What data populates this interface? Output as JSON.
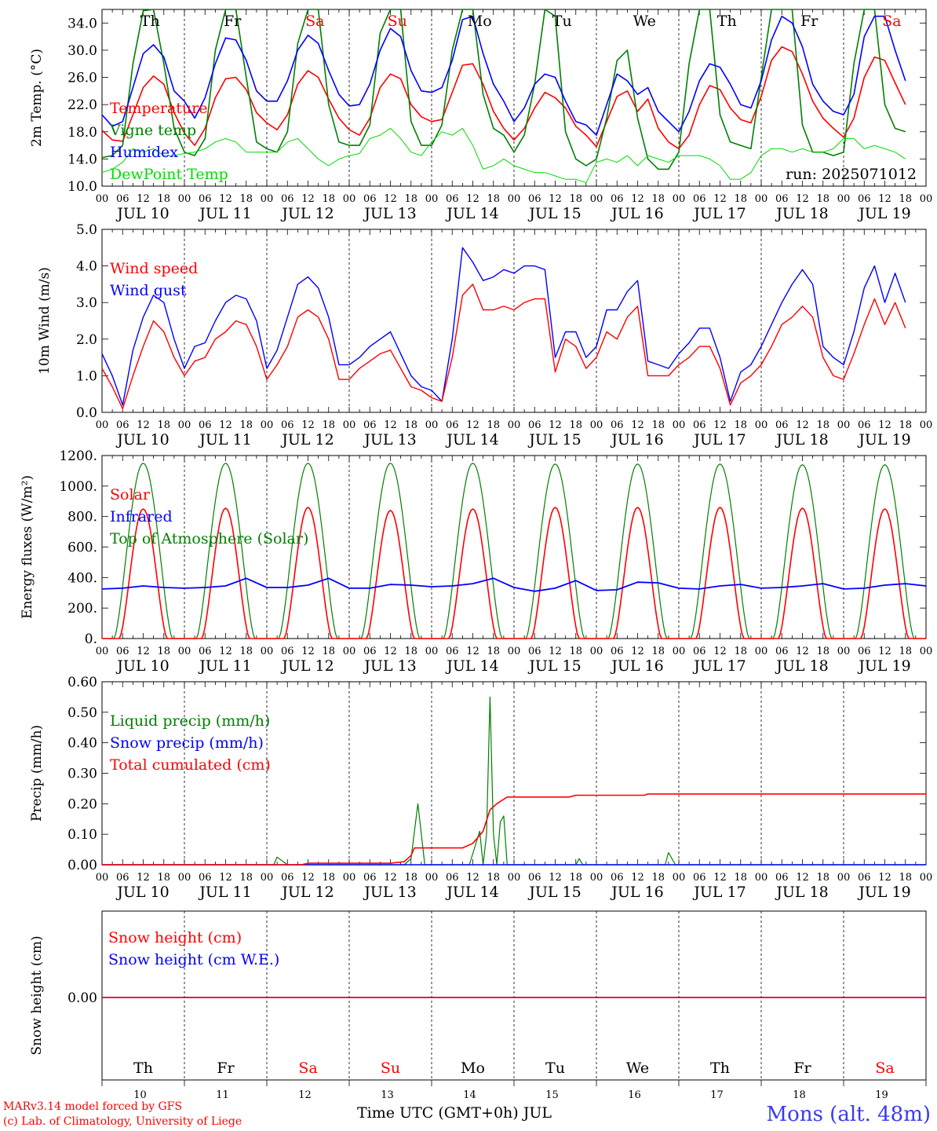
{
  "run_label": "run: 2025071012",
  "credits": [
    "MARv3.14 model forced by GFS",
    "(c) Lab. of Climatology, University of Liege"
  ],
  "station": "Mons (alt. 48m)",
  "x_axis_title": "Time UTC (GMT+0h) JUL",
  "hour_ticks": [
    "00",
    "06",
    "12",
    "18"
  ],
  "final_tick": "00",
  "days": [
    {
      "label": "JUL 10",
      "day": "10",
      "weekday": "Th",
      "weekend": false
    },
    {
      "label": "JUL 11",
      "day": "11",
      "weekday": "Fr",
      "weekend": false
    },
    {
      "label": "JUL 12",
      "day": "12",
      "weekday": "Sa",
      "weekend": true
    },
    {
      "label": "JUL 13",
      "day": "13",
      "weekday": "Su",
      "weekend": true
    },
    {
      "label": "JUL 14",
      "day": "14",
      "weekday": "Mo",
      "weekend": false
    },
    {
      "label": "JUL 15",
      "day": "15",
      "weekday": "Tu",
      "weekend": false
    },
    {
      "label": "JUL 16",
      "day": "16",
      "weekday": "We",
      "weekend": false
    },
    {
      "label": "JUL 17",
      "day": "17",
      "weekday": "Th",
      "weekend": false
    },
    {
      "label": "JUL 18",
      "day": "18",
      "weekday": "Fr",
      "weekend": false
    },
    {
      "label": "JUL 19",
      "day": "19",
      "weekday": "Sa",
      "weekend": true
    }
  ],
  "colors": {
    "red": "#ff0000",
    "green": "#008000",
    "blue": "#0000ff",
    "lightgreen": "#00dd00",
    "weekend": "#ff0000",
    "weekday": "#000000"
  },
  "chart_data": [
    {
      "type": "line",
      "ylabel": "2m Temp. (°C)",
      "ylim": [
        10,
        36
      ],
      "yticks": [
        "10.0",
        "14.0",
        "18.0",
        "22.0",
        "26.0",
        "30.0",
        "34.0"
      ],
      "ytick_values": [
        10,
        14,
        18,
        22,
        26,
        30,
        34
      ],
      "x_hours_from_jul10_00": [
        0,
        3,
        6,
        9,
        12,
        15,
        18,
        21,
        24,
        27,
        30,
        33,
        36,
        39,
        42,
        45,
        48,
        51,
        54,
        57,
        60,
        63,
        66,
        69,
        72,
        75,
        78,
        81,
        84,
        87,
        90,
        93,
        96,
        99,
        102,
        105,
        108,
        111,
        114,
        117,
        120,
        123,
        126,
        129,
        132,
        135,
        138,
        141,
        144,
        147,
        150,
        153,
        156,
        159,
        162,
        165,
        168,
        171,
        174,
        177,
        180,
        183,
        186,
        189,
        192,
        195,
        198,
        201,
        204,
        207,
        210,
        213,
        216,
        219,
        222,
        225,
        228,
        231,
        234,
        237,
        240
      ],
      "series": [
        {
          "name": "Temperature",
          "color": "red",
          "values": [
            18.2,
            16.8,
            16.6,
            20.5,
            24.5,
            26.2,
            25.0,
            20.8,
            17.8,
            16.0,
            18.5,
            23.0,
            25.8,
            26.0,
            24.2,
            20.8,
            19.3,
            18.3,
            20.5,
            25.0,
            27.0,
            26.0,
            22.8,
            20.0,
            18.3,
            17.5,
            20.0,
            24.5,
            26.5,
            25.8,
            22.0,
            20.2,
            19.5,
            19.8,
            23.8,
            27.8,
            28.0,
            25.0,
            21.0,
            18.5,
            16.8,
            18.5,
            21.5,
            23.8,
            23.0,
            21.5,
            18.8,
            17.5,
            15.8,
            19.5,
            23.2,
            24.0,
            21.0,
            22.8,
            18.5,
            16.5,
            15.5,
            17.5,
            22.0,
            24.8,
            24.2,
            21.5,
            19.8,
            19.3,
            23.2,
            28.5,
            30.5,
            29.8,
            26.5,
            22.5,
            20.0,
            18.5,
            17.2,
            20.0,
            26.0,
            29.0,
            28.5,
            25.2,
            22.0
          ]
        },
        {
          "name": "Vigne temp",
          "color": "green",
          "values": [
            14.2,
            14.5,
            16.0,
            28.0,
            35.8,
            36.0,
            28.0,
            18.5,
            15.0,
            14.5,
            17.0,
            30.0,
            36.0,
            36.0,
            26.0,
            16.5,
            15.5,
            15.0,
            18.0,
            31.0,
            36.0,
            36.0,
            22.0,
            16.5,
            16.0,
            16.0,
            19.0,
            32.5,
            36.0,
            36.0,
            19.5,
            16.0,
            16.0,
            19.0,
            30.0,
            36.0,
            36.0,
            23.5,
            18.5,
            17.5,
            15.0,
            17.5,
            25.0,
            36.0,
            35.0,
            18.0,
            14.0,
            13.0,
            14.0,
            20.0,
            28.5,
            30.0,
            20.0,
            14.0,
            12.5,
            12.5,
            15.0,
            28.0,
            36.0,
            36.0,
            20.5,
            16.5,
            16.0,
            15.5,
            26.0,
            36.0,
            36.0,
            36.0,
            19.0,
            15.0,
            15.0,
            14.5,
            15.0,
            28.0,
            36.0,
            36.0,
            22.0,
            18.5,
            18.0
          ]
        },
        {
          "name": "Humidex",
          "color": "blue",
          "values": [
            20.5,
            18.8,
            19.5,
            24.5,
            29.5,
            30.8,
            29.0,
            24.0,
            22.5,
            20.0,
            23.0,
            28.0,
            31.8,
            31.5,
            28.5,
            24.0,
            22.5,
            22.5,
            25.5,
            30.0,
            32.2,
            31.0,
            27.0,
            23.5,
            21.8,
            22.0,
            25.0,
            30.0,
            33.2,
            32.0,
            27.0,
            24.0,
            23.8,
            24.5,
            28.5,
            34.5,
            35.0,
            29.5,
            25.0,
            22.5,
            19.5,
            21.5,
            25.0,
            26.5,
            26.0,
            22.5,
            19.5,
            19.0,
            17.5,
            22.0,
            26.5,
            25.5,
            23.5,
            24.5,
            21.0,
            19.5,
            18.0,
            21.0,
            25.5,
            28.0,
            27.5,
            25.0,
            22.0,
            21.5,
            25.5,
            31.5,
            35.0,
            34.0,
            30.5,
            25.0,
            22.5,
            21.0,
            20.5,
            23.5,
            32.0,
            35.0,
            35.0,
            30.0,
            25.5
          ]
        },
        {
          "name": "DewPoint Temp",
          "color": "lightgreen",
          "values": [
            12.0,
            12.5,
            13.5,
            15.5,
            15.0,
            15.5,
            14.5,
            14.5,
            14.8,
            15.0,
            15.5,
            16.5,
            17.0,
            16.5,
            15.0,
            15.0,
            15.0,
            15.0,
            16.5,
            17.0,
            15.5,
            14.0,
            13.0,
            14.0,
            14.5,
            14.8,
            17.0,
            17.5,
            18.5,
            17.0,
            15.0,
            14.5,
            16.5,
            18.0,
            17.5,
            18.5,
            16.0,
            12.5,
            13.0,
            14.0,
            13.0,
            12.5,
            12.0,
            12.0,
            11.5,
            11.0,
            11.0,
            10.5,
            13.5,
            14.0,
            13.5,
            14.5,
            13.0,
            14.5,
            14.0,
            13.5,
            14.5,
            14.5,
            14.5,
            14.0,
            13.0,
            11.0,
            11.0,
            12.0,
            14.5,
            15.5,
            15.5,
            15.0,
            15.5,
            15.0,
            15.0,
            15.5,
            17.0,
            17.0,
            15.5,
            16.0,
            15.5,
            15.0,
            14.0
          ]
        }
      ]
    },
    {
      "type": "line",
      "ylabel": "10m Wind (m/s)",
      "ylim": [
        0,
        5
      ],
      "yticks": [
        "0.0",
        "1.0",
        "2.0",
        "3.0",
        "4.0",
        "5.0"
      ],
      "ytick_values": [
        0,
        1,
        2,
        3,
        4,
        5
      ],
      "x_hours_from_jul10_00": [
        0,
        3,
        6,
        9,
        12,
        15,
        18,
        21,
        24,
        27,
        30,
        33,
        36,
        39,
        42,
        45,
        48,
        51,
        54,
        57,
        60,
        63,
        66,
        69,
        72,
        75,
        78,
        81,
        84,
        87,
        90,
        93,
        96,
        99,
        102,
        105,
        108,
        111,
        114,
        117,
        120,
        123,
        126,
        129,
        132,
        135,
        138,
        141,
        144,
        147,
        150,
        153,
        156,
        159,
        162,
        165,
        168,
        171,
        174,
        177,
        180,
        183,
        186,
        189,
        192,
        195,
        198,
        201,
        204,
        207,
        210,
        213,
        216,
        219,
        222,
        225,
        228,
        231,
        234,
        237,
        240
      ],
      "series": [
        {
          "name": "Wind speed",
          "color": "red",
          "values": [
            1.2,
            0.7,
            0.1,
            1.0,
            1.8,
            2.5,
            2.2,
            1.5,
            1.0,
            1.4,
            1.5,
            2.0,
            2.2,
            2.5,
            2.4,
            1.8,
            0.9,
            1.3,
            1.8,
            2.6,
            2.8,
            2.6,
            2.0,
            0.9,
            0.9,
            1.2,
            1.4,
            1.6,
            1.7,
            1.2,
            0.7,
            0.6,
            0.4,
            0.3,
            1.5,
            3.2,
            3.5,
            2.8,
            2.8,
            2.9,
            2.8,
            3.0,
            3.1,
            3.1,
            1.1,
            2.0,
            1.8,
            1.2,
            1.5,
            2.2,
            2.0,
            2.6,
            2.9,
            1.0,
            1.0,
            1.0,
            1.3,
            1.5,
            1.8,
            1.8,
            1.2,
            0.2,
            0.8,
            1.0,
            1.3,
            1.8,
            2.4,
            2.6,
            2.9,
            2.6,
            1.5,
            1.0,
            0.9,
            1.6,
            2.4,
            3.1,
            2.4,
            3.0,
            2.3
          ]
        },
        {
          "name": "Wind gust",
          "color": "blue",
          "values": [
            1.6,
            1.0,
            0.2,
            1.7,
            2.6,
            3.2,
            3.0,
            2.0,
            1.2,
            1.8,
            1.9,
            2.5,
            3.0,
            3.2,
            3.1,
            2.5,
            1.2,
            1.7,
            2.6,
            3.5,
            3.7,
            3.4,
            2.6,
            1.3,
            1.3,
            1.5,
            1.8,
            2.0,
            2.2,
            1.6,
            1.0,
            0.7,
            0.6,
            0.3,
            2.0,
            4.5,
            4.1,
            3.6,
            3.7,
            3.9,
            3.8,
            4.0,
            4.0,
            3.9,
            1.5,
            2.2,
            2.2,
            1.5,
            1.8,
            2.8,
            2.8,
            3.3,
            3.6,
            1.4,
            1.3,
            1.2,
            1.6,
            1.9,
            2.3,
            2.3,
            1.5,
            0.3,
            1.1,
            1.3,
            1.8,
            2.4,
            3.0,
            3.5,
            3.9,
            3.5,
            1.8,
            1.5,
            1.3,
            2.2,
            3.4,
            4.0,
            3.0,
            3.8,
            3.0
          ]
        }
      ]
    },
    {
      "type": "line",
      "ylabel": "Energy fluxes (W/m²)",
      "ylim": [
        0,
        1200
      ],
      "yticks": [
        "0.",
        "200.",
        "400.",
        "600.",
        "800.",
        "1000.",
        "1200."
      ],
      "ytick_values": [
        0,
        200,
        400,
        600,
        800,
        1000,
        1200
      ],
      "series": [
        {
          "name": "Solar",
          "color": "red",
          "peak_per_day": [
            850,
            855,
            860,
            840,
            850,
            860,
            860,
            860,
            855,
            850
          ]
        },
        {
          "name": "Infrared",
          "color": "blue",
          "values_per_6h": [
            325,
            330,
            345,
            335,
            330,
            335,
            345,
            395,
            335,
            335,
            350,
            395,
            330,
            330,
            355,
            350,
            340,
            345,
            360,
            395,
            335,
            310,
            330,
            380,
            315,
            320,
            370,
            365,
            330,
            325,
            345,
            355,
            330,
            335,
            345,
            360,
            325,
            330,
            350,
            360,
            345
          ]
        },
        {
          "name": "Top of Atmosphere (Solar)",
          "color": "green",
          "peak_per_day": [
            1150,
            1150,
            1150,
            1150,
            1150,
            1145,
            1145,
            1145,
            1140,
            1140
          ]
        }
      ]
    },
    {
      "type": "line",
      "ylabel": "Precip (mm/h)",
      "ylim": [
        0,
        0.6
      ],
      "yticks": [
        "0.00",
        "0.10",
        "0.20",
        "0.30",
        "0.40",
        "0.50",
        "0.60"
      ],
      "ytick_values": [
        0,
        0.1,
        0.2,
        0.3,
        0.4,
        0.5,
        0.6
      ],
      "series": [
        {
          "name": "Liquid precip (mm/h)",
          "color": "green",
          "points": [
            [
              0,
              0
            ],
            [
              50,
              0
            ],
            [
              51,
              0.025
            ],
            [
              54,
              0
            ],
            [
              88,
              0
            ],
            [
              90,
              0.02
            ],
            [
              92,
              0.2
            ],
            [
              94,
              0
            ],
            [
              107,
              0
            ],
            [
              110,
              0.11
            ],
            [
              111,
              0
            ],
            [
              112,
              0.1
            ],
            [
              113,
              0.55
            ],
            [
              114,
              0.1
            ],
            [
              115,
              0
            ],
            [
              116,
              0.14
            ],
            [
              117,
              0.16
            ],
            [
              118,
              0
            ],
            [
              138,
              0
            ],
            [
              139,
              0.02
            ],
            [
              140,
              0
            ],
            [
              164,
              0
            ],
            [
              165,
              0.04
            ],
            [
              167,
              0
            ],
            [
              240,
              0
            ]
          ]
        },
        {
          "name": "Snow precip (mm/h)",
          "color": "blue",
          "points": [
            [
              0,
              0
            ],
            [
              240,
              0
            ]
          ]
        },
        {
          "name": "Total cumulated (cm)",
          "color": "red",
          "points": [
            [
              0,
              0
            ],
            [
              58,
              0
            ],
            [
              60,
              0.005
            ],
            [
              84,
              0.005
            ],
            [
              88,
              0.01
            ],
            [
              90,
              0.03
            ],
            [
              91,
              0.055
            ],
            [
              105,
              0.055
            ],
            [
              108,
              0.07
            ],
            [
              111,
              0.11
            ],
            [
              113,
              0.18
            ],
            [
              115,
              0.2
            ],
            [
              118,
              0.222
            ],
            [
              136,
              0.222
            ],
            [
              138,
              0.228
            ],
            [
              158,
              0.228
            ],
            [
              159,
              0.232
            ],
            [
              240,
              0.232
            ]
          ]
        }
      ]
    },
    {
      "type": "line",
      "ylabel": "Snow height (cm)",
      "yticks": [
        "0.00"
      ],
      "ytick_values": [
        0
      ],
      "series": [
        {
          "name": "Snow height (cm)",
          "color": "red",
          "points": [
            [
              0,
              0
            ],
            [
              240,
              0
            ]
          ]
        },
        {
          "name": "Snow height (cm W.E.)",
          "color": "blue",
          "points": [
            [
              0,
              0
            ],
            [
              240,
              0
            ]
          ]
        }
      ]
    }
  ]
}
